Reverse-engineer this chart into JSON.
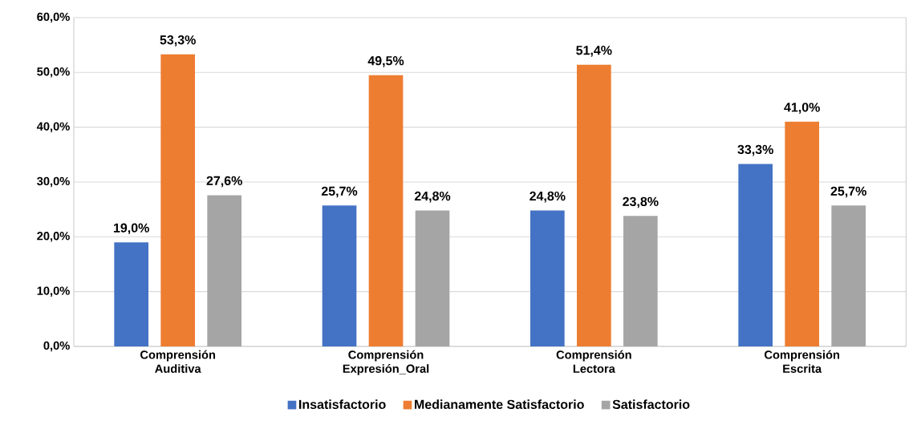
{
  "chart_data": {
    "type": "bar",
    "categories": [
      "Comprensión Auditiva",
      "Comprensión Expresión_Oral",
      "Comprensión Lectora",
      "Comprensión Escrita"
    ],
    "series": [
      {
        "name": "Insatisfactorio",
        "color": "#4472c4",
        "values": [
          19.0,
          25.7,
          24.8,
          33.3
        ],
        "value_labels": [
          "19,0%",
          "25,7%",
          "24,8%",
          "33,3%"
        ]
      },
      {
        "name": "Medianamente Satisfactorio",
        "color": "#ed7d31",
        "values": [
          53.3,
          49.5,
          51.4,
          41.0
        ],
        "value_labels": [
          "53,3%",
          "49,5%",
          "51,4%",
          "41,0%"
        ]
      },
      {
        "name": "Satisfactorio",
        "color": "#a5a5a5",
        "values": [
          27.6,
          24.8,
          23.8,
          25.7
        ],
        "value_labels": [
          "27,6%",
          "24,8%",
          "23,8%",
          "25,7%"
        ]
      }
    ],
    "ylim": [
      0,
      60
    ],
    "yticks": [
      {
        "value": 0,
        "label": "0,0%"
      },
      {
        "value": 10,
        "label": "10,0%"
      },
      {
        "value": 20,
        "label": "20,0%"
      },
      {
        "value": 30,
        "label": "30,0%"
      },
      {
        "value": 40,
        "label": "40,0%"
      },
      {
        "value": 50,
        "label": "50,0%"
      },
      {
        "value": 60,
        "label": "60,0%"
      }
    ],
    "grid": "y",
    "legend": "bottom"
  }
}
